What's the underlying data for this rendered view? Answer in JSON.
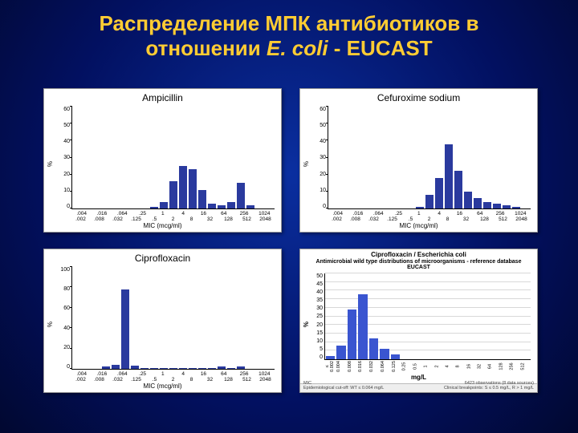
{
  "title_line1": "Распределение МПК антибиотиков в",
  "title_line2_a": "отношении ",
  "title_line2_em": "E. coli",
  "title_line2_b": " - EUCAST",
  "bar_color_A": "#2a3a9e",
  "bar_color_B": "#3a55d0",
  "panels_ABC_xticks_top": [
    ".004",
    ".016",
    ".064",
    ".25",
    "1",
    "4",
    "16",
    "64",
    "256",
    "1024"
  ],
  "panels_ABC_xticks_bot": [
    ".002",
    ".008",
    ".032",
    ".125",
    ".5",
    "2",
    "8",
    "32",
    "128",
    "512",
    "2048"
  ],
  "panels_ABC_xlabel": "MIC (mcg/ml)",
  "panels_ABC_ylabel": "%",
  "panelA": {
    "title": "Ampicillin",
    "ymax": 60,
    "ystep": 10,
    "values": [
      0,
      0,
      0,
      0,
      0,
      0,
      0,
      0,
      1,
      4,
      16,
      25,
      23,
      11,
      3,
      2,
      4,
      15,
      2,
      0,
      0
    ]
  },
  "panelB": {
    "title": "Cefuroxime sodium",
    "ymax": 60,
    "ystep": 10,
    "values": [
      0,
      0,
      0,
      0,
      0,
      0,
      0,
      0,
      0,
      1,
      8,
      18,
      38,
      22,
      10,
      6,
      4,
      3,
      2,
      1,
      0
    ]
  },
  "panelC": {
    "title": "Ciprofloxacin",
    "ymax": 100,
    "ystep": 20,
    "values": [
      0,
      0,
      0,
      2,
      4,
      78,
      3,
      1,
      1,
      1,
      1,
      1,
      1,
      1,
      1,
      2,
      1,
      2,
      0,
      0,
      0
    ]
  },
  "panelD": {
    "title1": "Ciprofloxacin / Escherichia coli",
    "title2": "Antimicrobial wild type distributions of microorganisms - reference database",
    "title3": "EUCAST",
    "ymax": 50,
    "ystep": 5,
    "xlabel": "mg/L",
    "ylabel": "%",
    "xticks": [
      "≤ 0.002",
      "0.004",
      "0.008",
      "0.016",
      "0.032",
      "0.064",
      "0.125",
      "0.25",
      "0.5",
      "1",
      "2",
      "4",
      "8",
      "16",
      "32",
      "64",
      "128",
      "256",
      "512"
    ],
    "values": [
      2,
      8,
      29,
      38,
      12,
      6,
      3,
      0,
      0,
      0,
      0,
      0,
      0,
      0,
      0,
      0,
      0,
      0,
      0
    ],
    "footer_left": "MIC\nEpidemiological cut-off: WT ≤ 0.064 mg/L",
    "footer_right": "6423 observations (8 data sources)\nClinical breakpoints: S ≤ 0.5 mg/L,  R > 1 mg/L",
    "bar_color": "#3a55d0",
    "grid_color": "#d8d8d8"
  }
}
